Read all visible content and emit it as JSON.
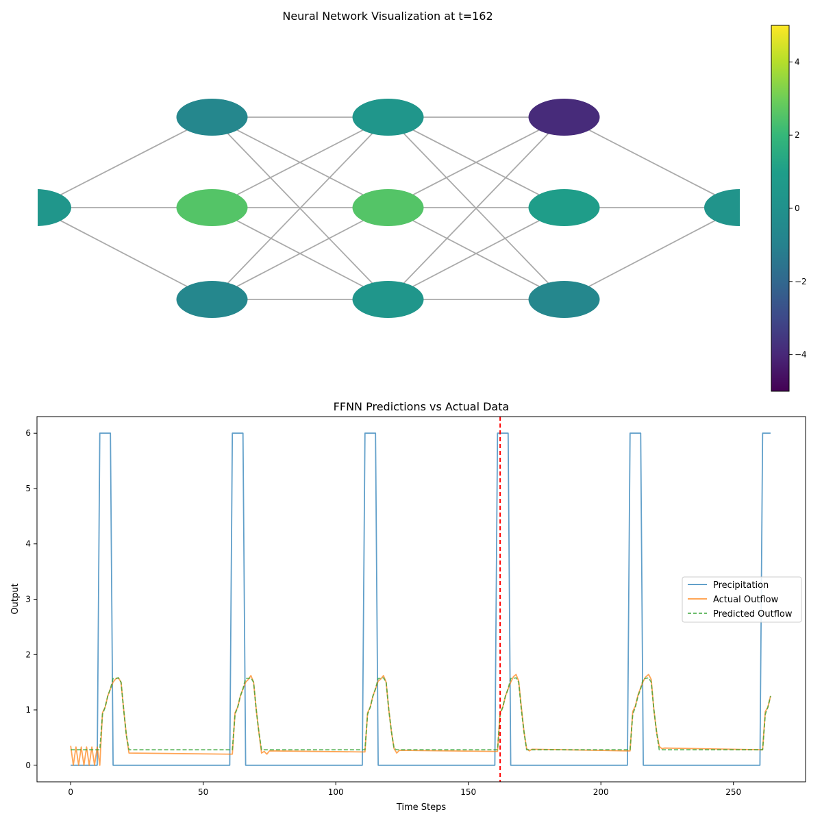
{
  "chart_data": [
    {
      "type": "network",
      "title": "Neural Network Visualization at t=162",
      "layers": [
        [
          0.35
        ],
        [
          -0.7,
          2.55,
          -0.7
        ],
        [
          0.4,
          2.55,
          0.4
        ],
        [
          -3.9,
          0.95,
          -0.7
        ],
        [
          0.2
        ]
      ],
      "colorbar": {
        "cmap": "viridis",
        "vmin": -5,
        "vmax": 5,
        "ticks": [
          -4,
          -2,
          0,
          2,
          4
        ],
        "tick_labels": [
          "−4",
          "−2",
          "0",
          "2",
          "4"
        ]
      }
    },
    {
      "type": "line",
      "title": "FFNN Predictions vs Actual Data",
      "xlabel": "Time Steps",
      "ylabel": "Output",
      "xlim": [
        -12.7,
        277.2
      ],
      "ylim": [
        -0.3,
        6.3
      ],
      "xticks": [
        0,
        50,
        100,
        150,
        200,
        250
      ],
      "yticks": [
        0,
        1,
        2,
        3,
        4,
        5,
        6
      ],
      "vline": {
        "x": 162,
        "color": "#ff0000",
        "style": "dashed"
      },
      "legend_position": "center-right",
      "series": [
        {
          "name": "Precipitation",
          "color": "#1f77b4",
          "style": "solid",
          "points": [
            [
              0,
              0
            ],
            [
              10,
              0
            ],
            [
              11,
              6
            ],
            [
              15,
              6
            ],
            [
              16,
              0
            ],
            [
              60,
              0
            ],
            [
              61,
              6
            ],
            [
              65,
              6
            ],
            [
              66,
              0
            ],
            [
              110,
              0
            ],
            [
              111,
              6
            ],
            [
              115,
              6
            ],
            [
              116,
              0
            ],
            [
              160,
              0
            ],
            [
              161,
              6
            ],
            [
              165,
              6
            ],
            [
              166,
              0
            ],
            [
              210,
              0
            ],
            [
              211,
              6
            ],
            [
              215,
              6
            ],
            [
              216,
              0
            ],
            [
              260,
              0
            ],
            [
              261,
              6
            ],
            [
              264,
              6
            ]
          ]
        },
        {
          "name": "Actual Outflow",
          "color": "#ff7f0e",
          "style": "solid",
          "points": [
            [
              0,
              0.35
            ],
            [
              1,
              0
            ],
            [
              2,
              0.33
            ],
            [
              3,
              0
            ],
            [
              4,
              0.33
            ],
            [
              5,
              0
            ],
            [
              6,
              0.33
            ],
            [
              7,
              0
            ],
            [
              8,
              0.33
            ],
            [
              9,
              0
            ],
            [
              10,
              0.33
            ],
            [
              11,
              0
            ],
            [
              12,
              0.95
            ],
            [
              13,
              1.05
            ],
            [
              14,
              1.25
            ],
            [
              15,
              1.38
            ],
            [
              16,
              1.5
            ],
            [
              17,
              1.56
            ],
            [
              18,
              1.58
            ],
            [
              19,
              1.5
            ],
            [
              20,
              1.0
            ],
            [
              21,
              0.55
            ],
            [
              22,
              0.22
            ],
            [
              60,
              0.2
            ],
            [
              61,
              0.2
            ],
            [
              62,
              0.95
            ],
            [
              63,
              1.05
            ],
            [
              64,
              1.25
            ],
            [
              65,
              1.38
            ],
            [
              66,
              1.5
            ],
            [
              67,
              1.55
            ],
            [
              68,
              1.62
            ],
            [
              69,
              1.5
            ],
            [
              70,
              1.0
            ],
            [
              71,
              0.6
            ],
            [
              72,
              0.22
            ],
            [
              73,
              0.25
            ],
            [
              74,
              0.2
            ],
            [
              75,
              0.26
            ],
            [
              110,
              0.24
            ],
            [
              111,
              0.24
            ],
            [
              112,
              0.95
            ],
            [
              113,
              1.05
            ],
            [
              114,
              1.25
            ],
            [
              115,
              1.38
            ],
            [
              116,
              1.52
            ],
            [
              117,
              1.56
            ],
            [
              118,
              1.62
            ],
            [
              119,
              1.5
            ],
            [
              120,
              1.0
            ],
            [
              121,
              0.6
            ],
            [
              122,
              0.3
            ],
            [
              123,
              0.22
            ],
            [
              124,
              0.27
            ],
            [
              160,
              0.25
            ],
            [
              161,
              0.25
            ],
            [
              162,
              0.95
            ],
            [
              163,
              1.05
            ],
            [
              164,
              1.25
            ],
            [
              165,
              1.38
            ],
            [
              166,
              1.5
            ],
            [
              167,
              1.6
            ],
            [
              168,
              1.64
            ],
            [
              169,
              1.52
            ],
            [
              170,
              1.05
            ],
            [
              171,
              0.6
            ],
            [
              172,
              0.3
            ],
            [
              173,
              0.26
            ],
            [
              174,
              0.29
            ],
            [
              210,
              0.26
            ],
            [
              211,
              0.26
            ],
            [
              212,
              0.97
            ],
            [
              213,
              1.07
            ],
            [
              214,
              1.27
            ],
            [
              215,
              1.4
            ],
            [
              216,
              1.52
            ],
            [
              217,
              1.6
            ],
            [
              218,
              1.64
            ],
            [
              219,
              1.55
            ],
            [
              220,
              1.0
            ],
            [
              221,
              0.6
            ],
            [
              222,
              0.34
            ],
            [
              223,
              0.3
            ],
            [
              224,
              0.31
            ],
            [
              260,
              0.28
            ],
            [
              261,
              0.28
            ],
            [
              262,
              0.97
            ],
            [
              263,
              1.05
            ],
            [
              264,
              1.25
            ]
          ]
        },
        {
          "name": "Predicted Outflow",
          "color": "#2ca02c",
          "style": "dashed",
          "points": [
            [
              0,
              0.28
            ],
            [
              11,
              0.28
            ],
            [
              12,
              0.92
            ],
            [
              13,
              1.05
            ],
            [
              14,
              1.25
            ],
            [
              15,
              1.38
            ],
            [
              16,
              1.57
            ],
            [
              17,
              1.57
            ],
            [
              18,
              1.58
            ],
            [
              19,
              1.5
            ],
            [
              20,
              1.0
            ],
            [
              21,
              0.55
            ],
            [
              22,
              0.28
            ],
            [
              61,
              0.28
            ],
            [
              62,
              0.92
            ],
            [
              63,
              1.05
            ],
            [
              64,
              1.25
            ],
            [
              65,
              1.38
            ],
            [
              66,
              1.57
            ],
            [
              67,
              1.57
            ],
            [
              68,
              1.58
            ],
            [
              69,
              1.5
            ],
            [
              70,
              1.0
            ],
            [
              71,
              0.6
            ],
            [
              72,
              0.28
            ],
            [
              111,
              0.28
            ],
            [
              112,
              0.92
            ],
            [
              113,
              1.05
            ],
            [
              114,
              1.25
            ],
            [
              115,
              1.38
            ],
            [
              116,
              1.57
            ],
            [
              117,
              1.57
            ],
            [
              118,
              1.58
            ],
            [
              119,
              1.5
            ],
            [
              120,
              1.0
            ],
            [
              121,
              0.6
            ],
            [
              122,
              0.3
            ],
            [
              123,
              0.28
            ],
            [
              161,
              0.28
            ],
            [
              162,
              0.92
            ],
            [
              163,
              1.05
            ],
            [
              164,
              1.25
            ],
            [
              165,
              1.38
            ],
            [
              166,
              1.57
            ],
            [
              167,
              1.57
            ],
            [
              168,
              1.58
            ],
            [
              169,
              1.5
            ],
            [
              170,
              1.0
            ],
            [
              171,
              0.6
            ],
            [
              172,
              0.28
            ],
            [
              211,
              0.28
            ],
            [
              212,
              0.92
            ],
            [
              213,
              1.05
            ],
            [
              214,
              1.25
            ],
            [
              215,
              1.38
            ],
            [
              216,
              1.57
            ],
            [
              217,
              1.57
            ],
            [
              218,
              1.58
            ],
            [
              219,
              1.5
            ],
            [
              220,
              1.0
            ],
            [
              221,
              0.6
            ],
            [
              222,
              0.28
            ],
            [
              261,
              0.28
            ],
            [
              262,
              0.92
            ],
            [
              263,
              1.05
            ],
            [
              264,
              1.25
            ]
          ]
        }
      ]
    }
  ]
}
